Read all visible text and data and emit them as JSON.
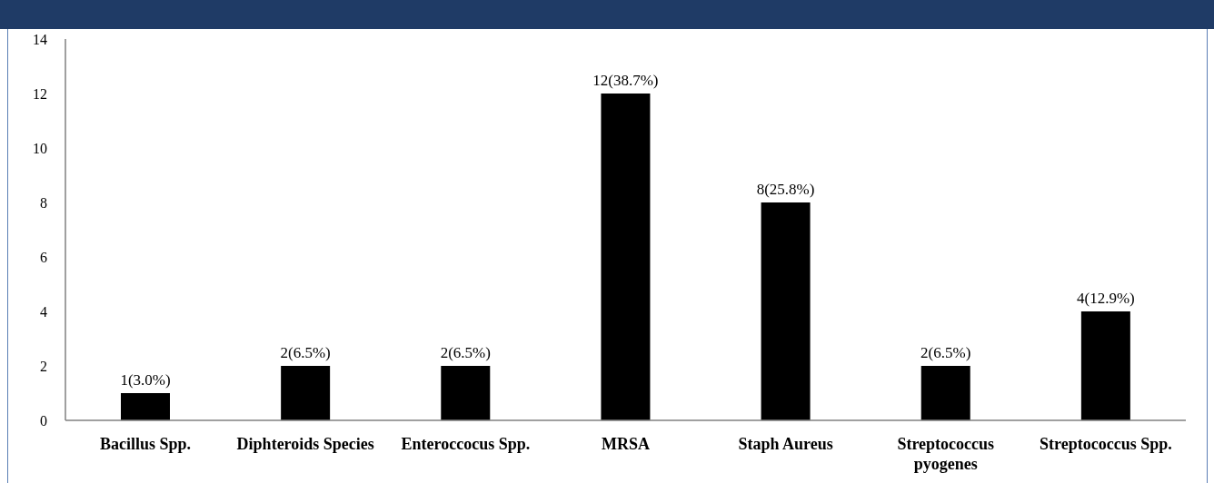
{
  "chart_data": {
    "type": "bar",
    "categories": [
      "Bacillus Spp.",
      "Diphteroids Species",
      "Enteroccocus Spp.",
      "MRSA",
      "Staph Aureus",
      "Streptococcus pyogenes",
      "Streptococcus Spp."
    ],
    "values": [
      1,
      2,
      2,
      12,
      8,
      2,
      4
    ],
    "color": "#000000",
    "value_labels": [
      "1(3.0%)",
      "2(6.5%)",
      "2(6.5%)",
      "12(38.7%)",
      "8(25.8%)",
      "2(6.5%)",
      "4(12.9%)"
    ],
    "ylim": [
      0,
      14
    ],
    "yticks": [
      0,
      2,
      4,
      6,
      8,
      10,
      12,
      14
    ]
  }
}
